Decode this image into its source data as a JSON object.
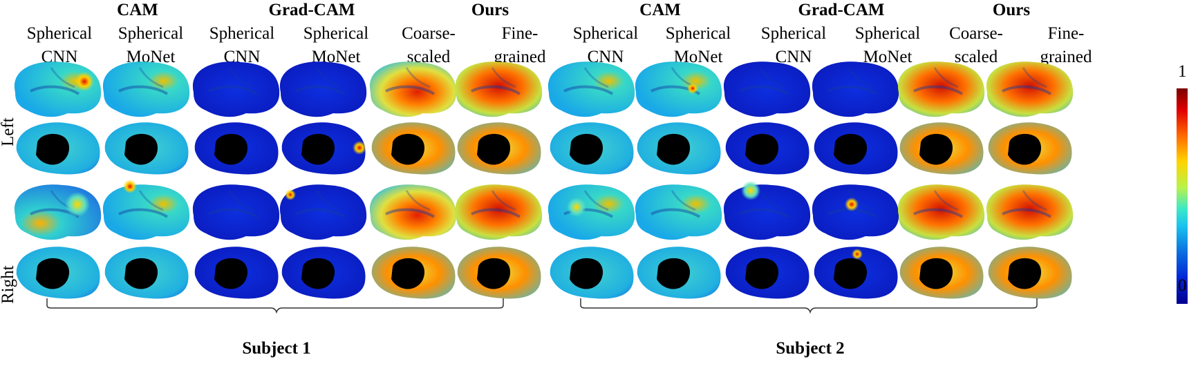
{
  "groups": [
    {
      "methods": [
        {
          "name": "CAM",
          "subs": [
            [
              "Spherical",
              "CNN"
            ],
            [
              "Spherical",
              "MoNet"
            ]
          ]
        },
        {
          "name": "Grad-CAM",
          "subs": [
            [
              "Spherical",
              "CNN"
            ],
            [
              "Spherical",
              "MoNet"
            ]
          ]
        },
        {
          "name": "Ours",
          "subs": [
            [
              "Coarse-",
              "scaled"
            ],
            [
              "Fine-",
              "grained"
            ]
          ]
        }
      ],
      "subject": "Subject 1"
    },
    {
      "methods": [
        {
          "name": "CAM",
          "subs": [
            [
              "Spherical",
              "CNN"
            ],
            [
              "Spherical",
              "MoNet"
            ]
          ]
        },
        {
          "name": "Grad-CAM",
          "subs": [
            [
              "Spherical",
              "CNN"
            ],
            [
              "Spherical",
              "MoNet"
            ]
          ]
        },
        {
          "name": "Ours",
          "subs": [
            [
              "Coarse-",
              "scaled"
            ],
            [
              "Fine-",
              "grained"
            ]
          ]
        }
      ],
      "subject": "Subject 2"
    }
  ],
  "row_labels": {
    "left": "Left",
    "right": "Right"
  },
  "colorbar": {
    "max": "1",
    "min": "0"
  },
  "colors": {
    "brain_base": "#2fd0d8",
    "low": "#0a1ec8",
    "high": "#e02000",
    "hole": "#000000"
  }
}
